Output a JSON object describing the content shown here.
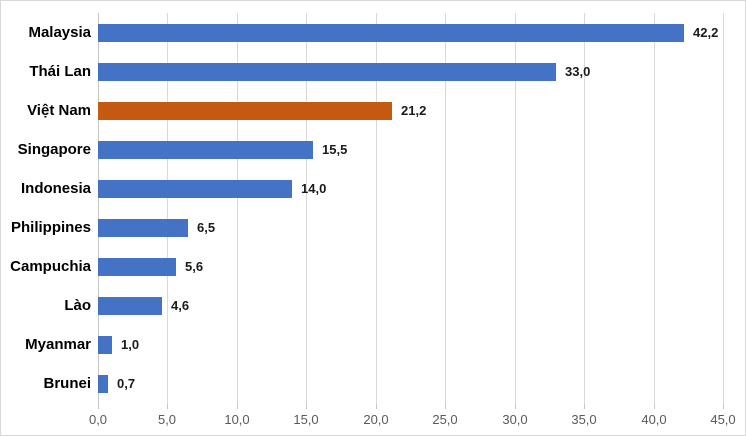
{
  "chart_data": {
    "type": "bar",
    "orientation": "horizontal",
    "title": "",
    "xlabel": "",
    "ylabel": "",
    "categories": [
      "Malaysia",
      "Thái Lan",
      "Việt Nam",
      "Singapore",
      "Indonesia",
      "Philippines",
      "Campuchia",
      "Lào",
      "Myanmar",
      "Brunei"
    ],
    "values": [
      42.2,
      33.0,
      21.2,
      15.5,
      14.0,
      6.5,
      5.6,
      4.6,
      1.0,
      0.7
    ],
    "value_labels": [
      "42,2",
      "33,0",
      "21,2",
      "15,5",
      "14,0",
      "6,5",
      "5,6",
      "4,6",
      "1,0",
      "0,7"
    ],
    "highlighted_category": "Việt Nam",
    "highlight_index": 2,
    "xlim": [
      0,
      45
    ],
    "x_ticks": [
      0,
      5,
      10,
      15,
      20,
      25,
      30,
      35,
      40,
      45
    ],
    "x_tick_labels": [
      "0,0",
      "5,0",
      "10,0",
      "15,0",
      "20,0",
      "25,0",
      "30,0",
      "35,0",
      "40,0",
      "45,0"
    ],
    "grid": "vertical",
    "legend": "none",
    "colors": {
      "bar_default": "#4472c4",
      "bar_highlight": "#c45911",
      "gridline": "#d9d9d9",
      "axis_line": "#c6c6c6",
      "tick_label": "#595959",
      "category_label": "#000000",
      "value_label": "#1a1a1a",
      "background": "#ffffff",
      "frame_border": "#d9d9d9"
    }
  }
}
